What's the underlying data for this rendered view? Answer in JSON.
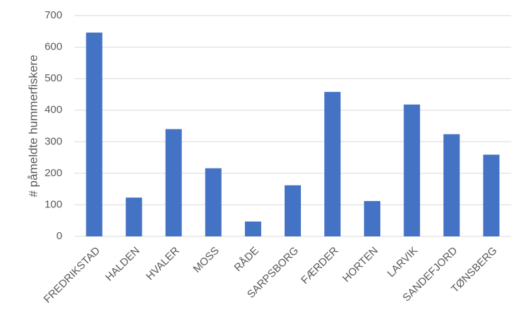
{
  "chart_data": {
    "type": "bar",
    "y_label": "# påmeldte hummerfiskere",
    "categories": [
      "FREDRIKSTAD",
      "HALDEN",
      "HVALER",
      "MOSS",
      "RÅDE",
      "SARPSBORG",
      "FÆRDER",
      "HORTEN",
      "LARVIK",
      "SANDEFJORD",
      "TØNSBERG"
    ],
    "values": [
      646,
      123,
      340,
      216,
      47,
      162,
      458,
      112,
      418,
      324,
      259
    ],
    "color": "#4472c4",
    "ylim": [
      0,
      700
    ],
    "yticks": [
      0,
      100,
      200,
      300,
      400,
      500,
      600,
      700
    ],
    "grid": true
  }
}
